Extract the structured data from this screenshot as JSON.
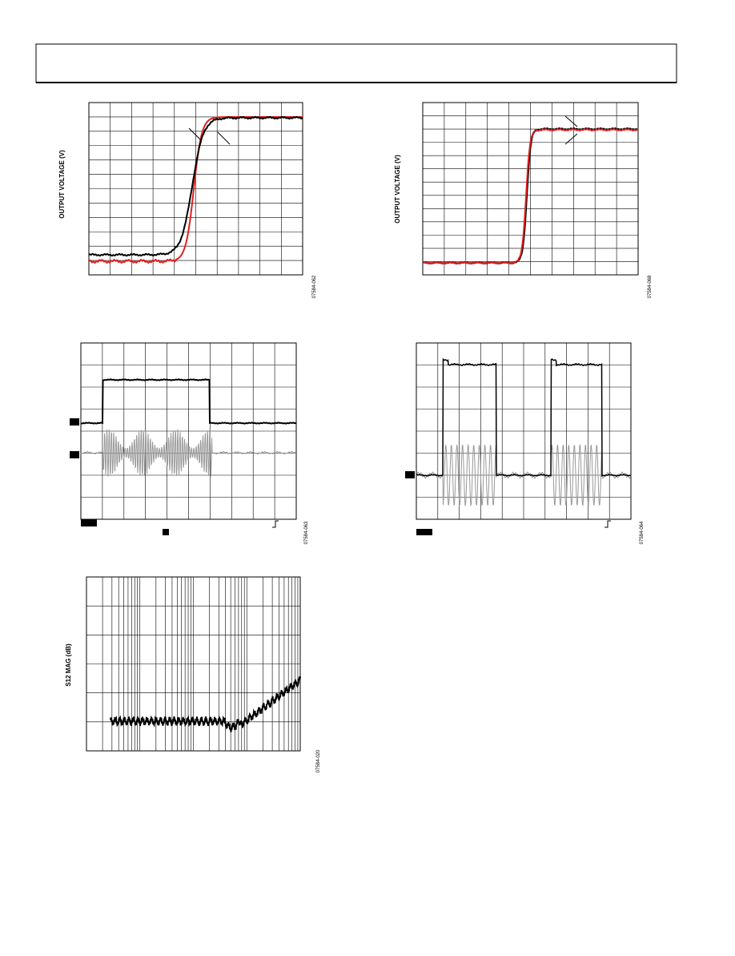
{
  "figures": [
    {
      "y_label": "OUTPUT VOLTAGE (V)",
      "code": "07584-062"
    },
    {
      "y_label": "OUTPUT VOLTAGE (V)",
      "code": "07584-068"
    },
    {
      "code": "07584-063"
    },
    {
      "code": "07584-064"
    },
    {
      "y_label": "S12 MAG (dB)",
      "code": "07584-020"
    }
  ]
}
